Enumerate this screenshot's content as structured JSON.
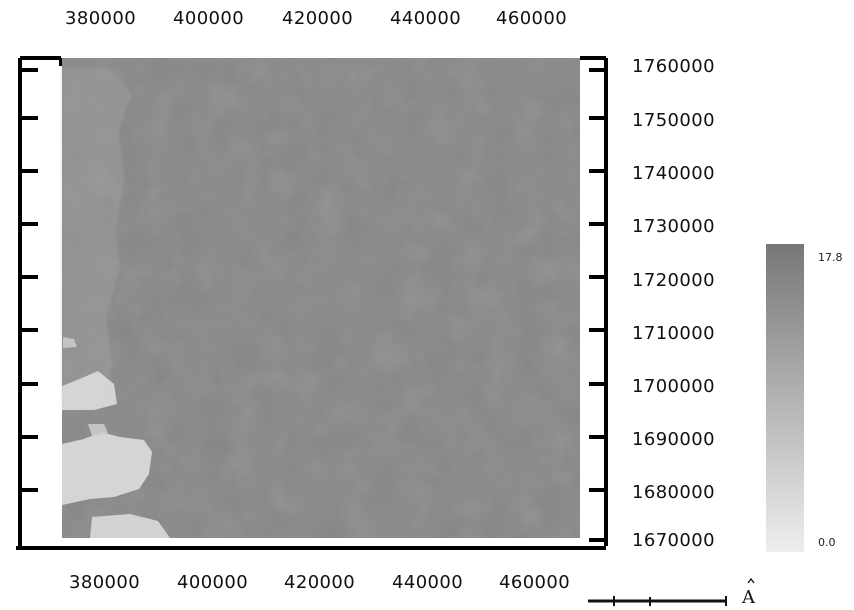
{
  "map": {
    "x_axis": {
      "top_ticks": [
        "380000",
        "400000",
        "420000",
        "440000",
        "460000"
      ],
      "bottom_ticks": [
        "380000",
        "400000",
        "420000",
        "440000",
        "460000"
      ]
    },
    "y_axis": {
      "right_ticks": [
        "1760000",
        "1750000",
        "1740000",
        "1730000",
        "1720000",
        "1710000",
        "1700000",
        "1690000",
        "1680000",
        "1670000"
      ]
    },
    "legend": {
      "max_label": "17.8",
      "min_label": "0.0",
      "gradient_top_color": "#777777",
      "gradient_bottom_color": "#eeeeee"
    },
    "north_arrow": {
      "label": "A"
    },
    "raster": {
      "base_color": "#888888",
      "light_patch_color": "#d8d8d8"
    }
  }
}
